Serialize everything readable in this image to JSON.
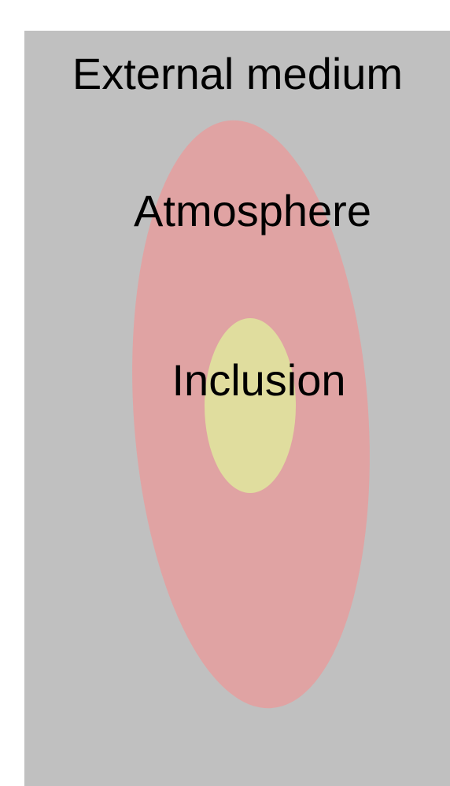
{
  "regions": [
    {
      "label": "External medium"
    },
    {
      "label": "Atmosphere"
    },
    {
      "label": "Inclusion"
    }
  ]
}
